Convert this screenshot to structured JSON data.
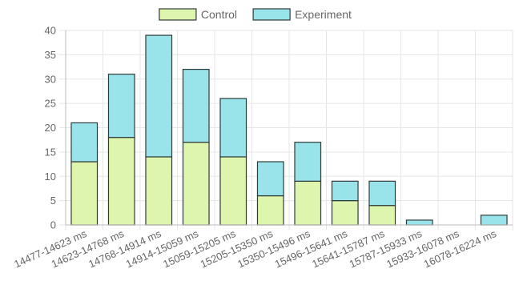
{
  "chart_data": {
    "type": "bar",
    "stacked": true,
    "categories": [
      "14477-14623 ms",
      "14623-14768 ms",
      "14768-14914 ms",
      "14914-15059 ms",
      "15059-15205 ms",
      "15205-15350 ms",
      "15350-15496 ms",
      "15496-15641 ms",
      "15641-15787 ms",
      "15787-15933 ms",
      "15933-16078 ms",
      "16078-16224 ms"
    ],
    "series": [
      {
        "name": "Control",
        "color": "#ddf5ac",
        "border": "#2f3a3a",
        "values": [
          13,
          18,
          14,
          17,
          14,
          6,
          9,
          5,
          4,
          0,
          0,
          0
        ]
      },
      {
        "name": "Experiment",
        "color": "#99e3ea",
        "border": "#2f3a3a",
        "values": [
          8,
          13,
          25,
          15,
          12,
          7,
          8,
          4,
          5,
          1,
          0,
          2
        ]
      }
    ],
    "ylim": [
      0,
      40
    ],
    "yticks": [
      0,
      5,
      10,
      15,
      20,
      25,
      30,
      35,
      40
    ],
    "grid": true,
    "legend_position": "top-center"
  }
}
